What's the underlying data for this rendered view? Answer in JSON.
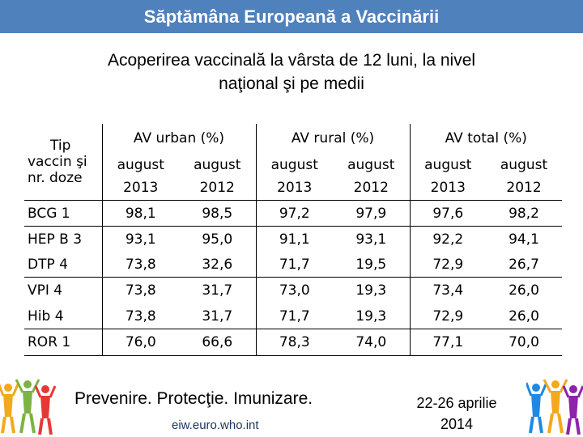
{
  "header": {
    "title": "Săptămâna Europeană a Vaccinării"
  },
  "subtitle": {
    "line1": "Acoperirea vaccinală la vârsta de 12 luni, la nivel",
    "line2": "naţional şi pe medii"
  },
  "table": {
    "corner": [
      "Tip",
      "vaccin şi",
      "nr. doze"
    ],
    "groups": [
      "AV urban (%)",
      "AV rural (%)",
      "AV total (%)"
    ],
    "subheaders": [
      [
        "august",
        "2013"
      ],
      [
        "august",
        "2012"
      ],
      [
        "august",
        "2013"
      ],
      [
        "august",
        "2012"
      ],
      [
        "august",
        "2013"
      ],
      [
        "august",
        "2012"
      ]
    ],
    "rows": [
      {
        "label": "BCG 1",
        "values": [
          "98,1",
          "98,5",
          "97,2",
          "97,9",
          "97,6",
          "98,2"
        ]
      },
      {
        "label": "HEP B 3",
        "values": [
          "93,1",
          "95,0",
          "91,1",
          "93,1",
          "92,2",
          "94,1"
        ]
      },
      {
        "label": "DTP 4",
        "values": [
          "73,8",
          "32,6",
          "71,7",
          "19,5",
          "72,9",
          "26,7"
        ]
      },
      {
        "label": "VPI 4",
        "values": [
          "73,8",
          "31,7",
          "73,0",
          "19,3",
          "73,4",
          "26,0"
        ]
      },
      {
        "label": "Hib 4",
        "values": [
          "73,8",
          "31,7",
          "71,7",
          "19,3",
          "72,9",
          "26,0"
        ]
      },
      {
        "label": "ROR 1",
        "values": [
          "76,0",
          "66,6",
          "78,3",
          "74,0",
          "77,1",
          "70,0"
        ]
      }
    ]
  },
  "footer": {
    "slogan": "Prevenire. Protecţie. Imunizare.",
    "url": "eiw.euro.who.int",
    "date_line1": "22-26 aprilie",
    "date_line2": "2014"
  },
  "colors": {
    "banner": "#4f81bd",
    "banner_text": "#ffffff",
    "url": "#17375e"
  }
}
